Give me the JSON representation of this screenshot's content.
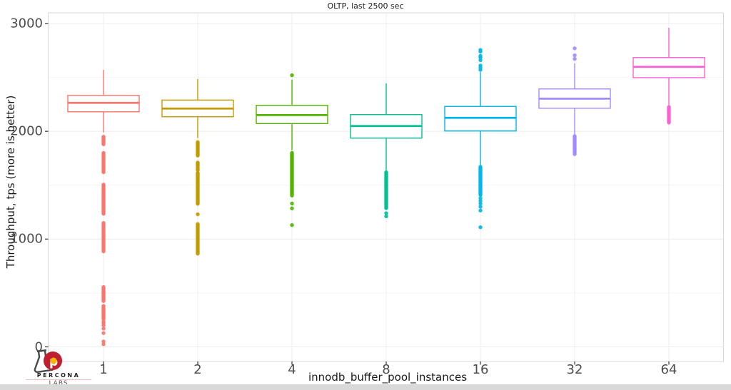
{
  "title": "OLTP, last 2500 sec",
  "branding": {
    "name": "PERCONA",
    "sub": "LABS"
  },
  "chart_data": {
    "type": "boxplot",
    "title": "OLTP, last 2500 sec",
    "xlabel": "innodb_buffer_pool_instances",
    "ylabel": "Throughput, tps (more is better)",
    "ylim": [
      0,
      3000
    ],
    "yticks": [
      0,
      1000,
      2000,
      3000
    ],
    "ygrid_minor": [
      500,
      1500,
      2500
    ],
    "grid": "on",
    "legend": "none",
    "categories": [
      "1",
      "2",
      "4",
      "8",
      "16",
      "32",
      "64"
    ],
    "series": [
      {
        "name": "1",
        "color": "#F8766D",
        "median": 2264,
        "q1": 2181,
        "q3": 2333,
        "whisker_low": 1990,
        "whisker_high": 2570,
        "outliers_high": [],
        "outliers_low": [
          1950,
          1940,
          1930,
          1920,
          1910,
          1900,
          1890,
          1880,
          1800,
          1788,
          1776,
          1764,
          1752,
          1740,
          1728,
          1716,
          1704,
          1692,
          1680,
          1668,
          1656,
          1644,
          1632,
          1620,
          1505,
          1495,
          1485,
          1475,
          1465,
          1455,
          1445,
          1435,
          1425,
          1415,
          1405,
          1395,
          1385,
          1375,
          1365,
          1355,
          1345,
          1335,
          1325,
          1315,
          1305,
          1295,
          1285,
          1275,
          1265,
          1255,
          1245,
          1235,
          1150,
          1138,
          1126,
          1114,
          1102,
          1090,
          1078,
          1066,
          1054,
          1042,
          1030,
          1018,
          1006,
          994,
          982,
          970,
          958,
          946,
          934,
          922,
          910,
          898,
          886,
          555,
          545,
          535,
          525,
          515,
          505,
          495,
          485,
          475,
          465,
          455,
          445,
          435,
          425,
          380,
          370,
          360,
          350,
          340,
          330,
          320,
          310,
          300,
          290,
          280,
          270,
          260,
          235,
          220,
          200,
          170,
          128,
          50,
          25
        ]
      },
      {
        "name": "2",
        "color": "#C49A00",
        "median": 2211,
        "q1": 2135,
        "q3": 2290,
        "whisker_low": 1937,
        "whisker_high": 2485,
        "outliers_high": [],
        "outliers_low": [
          1900,
          1891,
          1882,
          1873,
          1864,
          1855,
          1846,
          1837,
          1828,
          1819,
          1810,
          1801,
          1792,
          1783,
          1775,
          1710,
          1700,
          1690,
          1680,
          1665,
          1650,
          1640,
          1615,
          1606,
          1597,
          1588,
          1579,
          1570,
          1561,
          1552,
          1543,
          1534,
          1525,
          1516,
          1507,
          1498,
          1489,
          1480,
          1471,
          1462,
          1453,
          1444,
          1435,
          1426,
          1417,
          1408,
          1399,
          1390,
          1381,
          1372,
          1363,
          1354,
          1345,
          1336,
          1327,
          1230,
          1140,
          1129,
          1118,
          1107,
          1096,
          1085,
          1074,
          1063,
          1052,
          1041,
          1030,
          1019,
          1008,
          997,
          986,
          975,
          964,
          953,
          942,
          931,
          920,
          909,
          898,
          887,
          876,
          865
        ]
      },
      {
        "name": "4",
        "color": "#53B400",
        "median": 2151,
        "q1": 2072,
        "q3": 2241,
        "whisker_low": 1824,
        "whisker_high": 2480,
        "outliers_high": [
          2520
        ],
        "outliers_low": [
          1800,
          1791,
          1782,
          1773,
          1764,
          1755,
          1746,
          1737,
          1728,
          1719,
          1710,
          1701,
          1692,
          1683,
          1674,
          1665,
          1656,
          1647,
          1638,
          1629,
          1620,
          1611,
          1602,
          1593,
          1584,
          1575,
          1566,
          1557,
          1548,
          1539,
          1530,
          1521,
          1512,
          1503,
          1494,
          1485,
          1476,
          1467,
          1458,
          1449,
          1440,
          1431,
          1422,
          1413,
          1404,
          1330,
          1285,
          1130
        ]
      },
      {
        "name": "8",
        "color": "#00C094",
        "median": 2049,
        "q1": 1937,
        "q3": 2155,
        "whisker_low": 1626,
        "whisker_high": 2446,
        "outliers_high": [],
        "outliers_low": [
          1620,
          1611,
          1602,
          1593,
          1584,
          1575,
          1566,
          1557,
          1548,
          1539,
          1530,
          1521,
          1512,
          1503,
          1494,
          1485,
          1476,
          1467,
          1458,
          1449,
          1440,
          1431,
          1422,
          1413,
          1404,
          1395,
          1386,
          1377,
          1368,
          1359,
          1350,
          1341,
          1332,
          1323,
          1314,
          1305,
          1296,
          1287,
          1240,
          1212
        ]
      },
      {
        "name": "16",
        "color": "#00B6EB",
        "median": 2125,
        "q1": 2003,
        "q3": 2231,
        "whisker_low": 1679,
        "whisker_high": 2550,
        "outliers_high": [
          2755,
          2740,
          2700,
          2685,
          2660,
          2610,
          2590,
          2570
        ],
        "outliers_low": [
          1670,
          1661,
          1652,
          1643,
          1634,
          1625,
          1616,
          1607,
          1598,
          1589,
          1580,
          1571,
          1562,
          1553,
          1544,
          1535,
          1526,
          1517,
          1508,
          1499,
          1490,
          1481,
          1472,
          1463,
          1454,
          1445,
          1436,
          1427,
          1418,
          1409,
          1380,
          1355,
          1330,
          1300,
          1265,
          1110
        ]
      },
      {
        "name": "32",
        "color": "#A58AFF",
        "median": 2303,
        "q1": 2214,
        "q3": 2393,
        "whisker_low": 1963,
        "whisker_high": 2630,
        "outliers_high": [
          2770,
          2705,
          2672
        ],
        "outliers_low": [
          1955,
          1946,
          1937,
          1928,
          1919,
          1910,
          1901,
          1892,
          1883,
          1874,
          1865,
          1856,
          1847,
          1838,
          1829,
          1820,
          1811,
          1802,
          1788
        ]
      },
      {
        "name": "64",
        "color": "#FB61D7",
        "median": 2598,
        "q1": 2498,
        "q3": 2684,
        "whisker_low": 2234,
        "whisker_high": 2960,
        "outliers_high": [],
        "outliers_low": [
          2225,
          2216,
          2207,
          2198,
          2189,
          2180,
          2171,
          2162,
          2153,
          2144,
          2135,
          2126,
          2117,
          2108,
          2099,
          2090,
          2081
        ]
      }
    ]
  },
  "logo": {
    "flask_color": "#4a4a4a",
    "circle_color": "#c01f2f",
    "dot_color": "#f2b705",
    "p_color": "#ffffff"
  }
}
